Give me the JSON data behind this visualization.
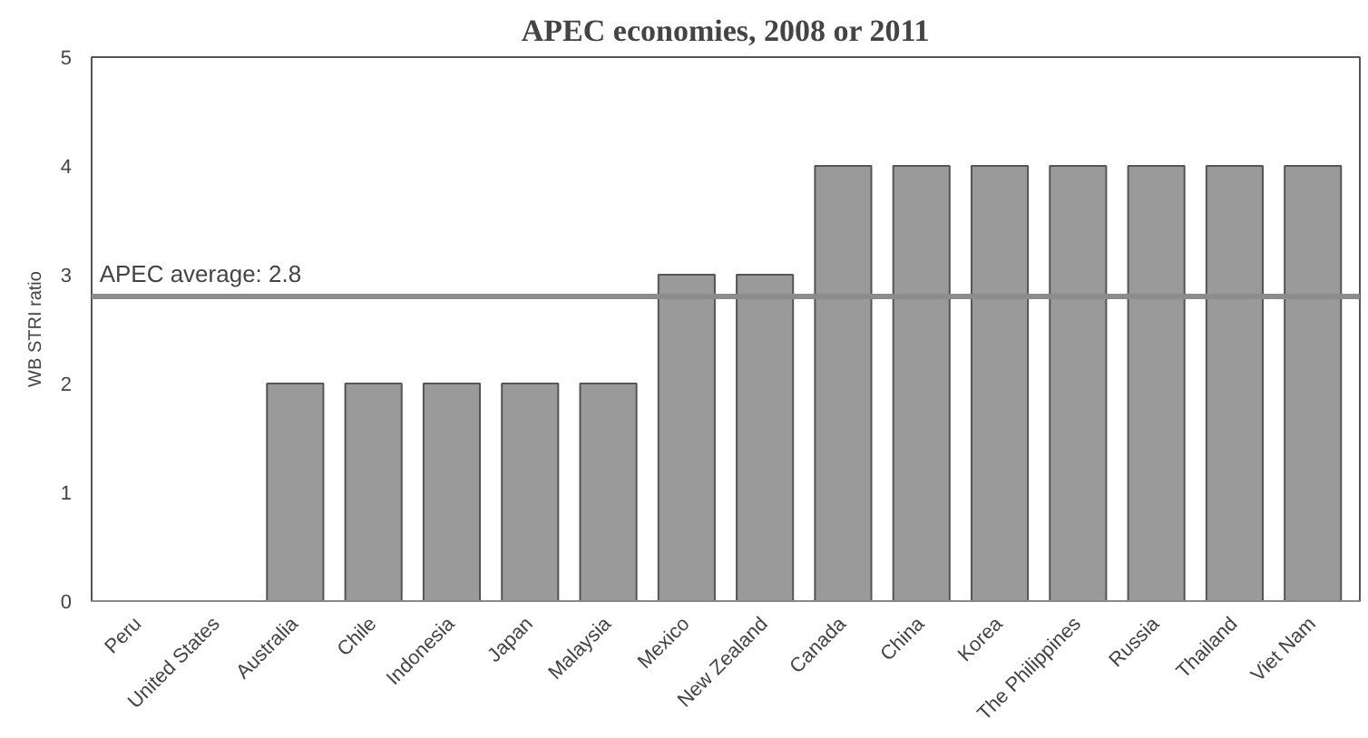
{
  "chart_data": {
    "type": "bar",
    "title": "APEC economies, 2008 or 2011",
    "ylabel": "WB STRI ratio",
    "categories": [
      "Peru",
      "United States",
      "Australia",
      "Chile",
      "Indonesia",
      "Japan",
      "Malaysia",
      "Mexico",
      "New Zealand",
      "Canada",
      "China",
      "Korea",
      "The Philippines",
      "Russia",
      "Thailand",
      "Viet Nam"
    ],
    "values": [
      0,
      0,
      2,
      2,
      2,
      2,
      2,
      3,
      3,
      4,
      4,
      4,
      4,
      4,
      4,
      4
    ],
    "color": "#9a9a9a",
    "ylim": [
      0,
      5
    ],
    "yticks": [
      0,
      1,
      2,
      3,
      4,
      5
    ],
    "grid": false,
    "ref_lines": [
      {
        "axis": "y",
        "value": 2.8,
        "label": "APEC average: 2.8",
        "color": "#8c8c8c"
      }
    ]
  }
}
